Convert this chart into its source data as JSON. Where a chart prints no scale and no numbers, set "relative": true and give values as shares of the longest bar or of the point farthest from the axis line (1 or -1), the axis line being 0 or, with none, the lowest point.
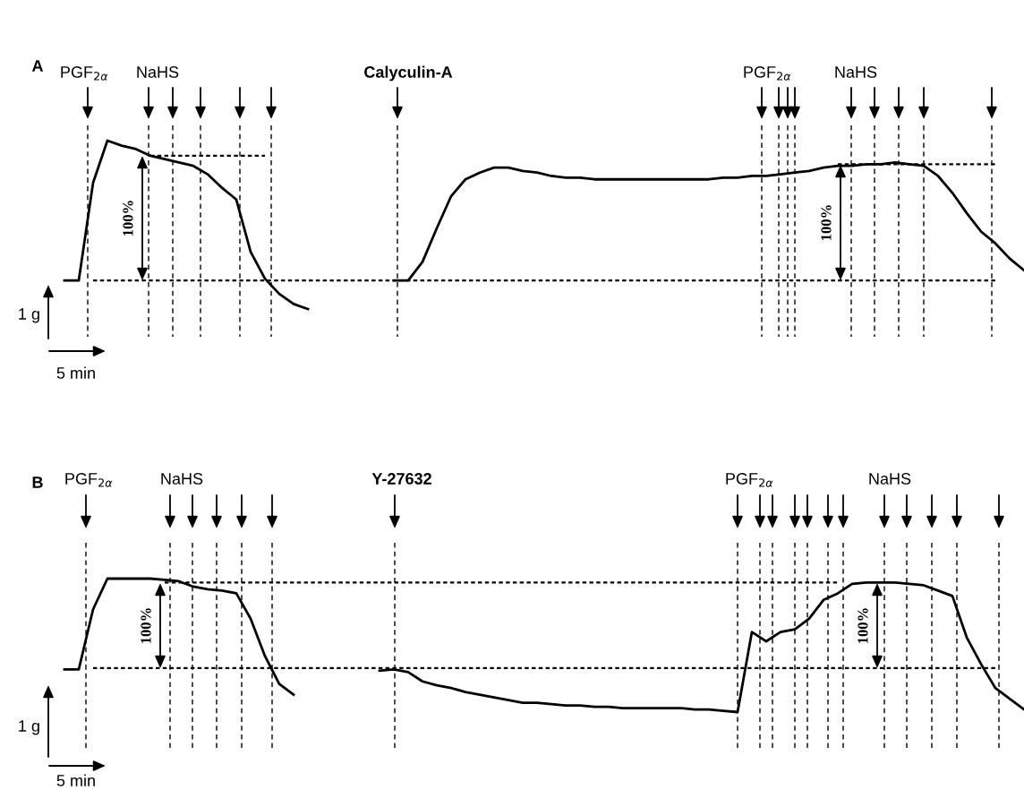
{
  "chart_data": [
    {
      "type": "line",
      "title": "A",
      "relative": true,
      "tick_labels": false,
      "categories": [
        null,
        null,
        null,
        null,
        null,
        null,
        null,
        null,
        null,
        null,
        null,
        null,
        null,
        null,
        null,
        null,
        null,
        null,
        null,
        null,
        null,
        null,
        null,
        null,
        null,
        null,
        null,
        null,
        null,
        null,
        null,
        null,
        null,
        null,
        null,
        null,
        null,
        null,
        null,
        null,
        null,
        null,
        null,
        null,
        null,
        null,
        null,
        null,
        null,
        null,
        null,
        null,
        null,
        null,
        null,
        null,
        null,
        null,
        null,
        null,
        null,
        null,
        null,
        null,
        null,
        null,
        null,
        null
      ],
      "series": [
        {
          "color": "#000000",
          "line_style": "solid",
          "values": [
            0.17,
            0.17,
            0.75,
            1.0,
            0.97,
            0.95,
            0.91,
            0.89,
            0.87,
            0.85,
            0.8,
            0.72,
            0.65,
            0.34,
            0.18,
            0.09,
            0.03,
            0,
            null,
            null,
            null,
            null,
            null,
            null,
            null,
            null,
            null,
            null,
            null,
            null,
            null,
            null,
            null,
            null,
            null,
            null,
            null,
            null,
            null,
            null,
            null,
            null,
            null,
            null,
            null,
            null,
            null,
            null,
            null,
            null,
            null,
            null,
            null,
            null,
            null,
            null,
            null,
            null,
            null,
            null,
            null,
            null,
            null,
            null,
            null,
            null,
            null,
            null
          ]
        },
        {
          "color": "#000000",
          "line_style": "solid",
          "values": [
            null,
            null,
            null,
            null,
            null,
            null,
            null,
            null,
            null,
            null,
            null,
            null,
            null,
            null,
            null,
            null,
            null,
            null,
            null,
            null,
            null,
            null,
            null,
            0.17,
            0.17,
            0.28,
            0.48,
            0.67,
            0.77,
            0.81,
            0.84,
            0.84,
            0.82,
            0.81,
            0.79,
            0.78,
            0.78,
            0.77,
            0.77,
            0.77,
            0.77,
            0.77,
            0.77,
            0.77,
            0.77,
            0.77,
            0.78,
            0.78,
            0.79,
            0.79,
            0.8,
            0.81,
            0.82,
            0.84,
            0.85,
            0.85,
            0.86,
            0.86,
            0.87,
            0.86,
            0.85,
            0.79,
            0.69,
            0.57,
            0.46,
            0.39,
            0.3,
            0.23
          ]
        },
        {
          "color": "#000000",
          "line_style": "dotted",
          "values": [
            null,
            null,
            0.17,
            0.17,
            0.17,
            0.17,
            0.17,
            0.17,
            0.17,
            0.17,
            0.17,
            0.17,
            0.17,
            0.17,
            0.17,
            0.17,
            0.17,
            0.17,
            0.17,
            0.17,
            0.17,
            0.17,
            0.17,
            0.17,
            0.17,
            0.17,
            0.17,
            0.17,
            0.17,
            0.17,
            0.17,
            0.17,
            0.17,
            0.17,
            0.17,
            0.17,
            0.17,
            0.17,
            0.17,
            0.17,
            0.17,
            0.17,
            0.17,
            0.17,
            0.17,
            0.17,
            0.17,
            0.17,
            0.17,
            0.17,
            0.17,
            0.17,
            0.17,
            0.17,
            0.17,
            0.17,
            0.17,
            0.17,
            0.17,
            0.17,
            0.17,
            0.17,
            0.17,
            0.17,
            0.17,
            0.17,
            null,
            null
          ]
        },
        {
          "color": "#000000",
          "line_style": "dotted",
          "values": [
            null,
            null,
            null,
            null,
            null,
            null,
            0.91,
            0.91,
            0.91,
            0.91,
            0.91,
            0.91,
            0.91,
            0.91,
            0.91,
            null,
            null,
            null,
            null,
            null,
            null,
            null,
            null,
            null,
            null,
            null,
            null,
            null,
            null,
            null,
            null,
            null,
            null,
            null,
            null,
            null,
            null,
            null,
            null,
            null,
            null,
            null,
            null,
            null,
            null,
            null,
            null,
            null,
            null,
            null,
            null,
            null,
            null,
            null,
            null,
            null,
            null,
            null,
            null,
            null,
            null,
            null,
            null,
            null,
            null,
            null,
            null,
            null
          ]
        },
        {
          "color": "#000000",
          "line_style": "dotted",
          "values": [
            null,
            null,
            null,
            null,
            null,
            null,
            null,
            null,
            null,
            null,
            null,
            null,
            null,
            null,
            null,
            null,
            null,
            null,
            null,
            null,
            null,
            null,
            null,
            null,
            null,
            null,
            null,
            null,
            null,
            null,
            null,
            null,
            null,
            null,
            null,
            null,
            null,
            null,
            null,
            null,
            null,
            null,
            null,
            null,
            null,
            null,
            null,
            null,
            null,
            null,
            null,
            null,
            null,
            null,
            0.86,
            0.86,
            0.86,
            0.86,
            0.86,
            0.86,
            0.86,
            0.86,
            0.86,
            0.86,
            0.86,
            0.86,
            null,
            null
          ]
        }
      ],
      "annotations": [
        "PGF$_{2α}$",
        "NaHS",
        "Calyculin-A",
        "PGF$_{2α}$",
        "NaHS",
        "100%",
        "100%",
        "1 g",
        "5 min"
      ]
    },
    {
      "type": "line",
      "title": "B",
      "relative": true,
      "tick_labels": false,
      "categories": [
        null,
        null,
        null,
        null,
        null,
        null,
        null,
        null,
        null,
        null,
        null,
        null,
        null,
        null,
        null,
        null,
        null,
        null,
        null,
        null,
        null,
        null,
        null,
        null,
        null,
        null,
        null,
        null,
        null,
        null,
        null,
        null,
        null,
        null,
        null,
        null,
        null,
        null,
        null,
        null,
        null,
        null,
        null,
        null,
        null,
        null,
        null,
        null,
        null,
        null,
        null,
        null,
        null,
        null,
        null,
        null,
        null,
        null,
        null,
        null,
        null,
        null,
        null,
        null,
        null,
        null,
        null,
        null
      ],
      "series": [
        {
          "color": "#000000",
          "line_style": "solid",
          "values": [
            0.32,
            0.32,
            0.77,
            1.0,
            1.0,
            1.0,
            1.0,
            0.99,
            0.98,
            0.94,
            0.92,
            0.91,
            0.89,
            0.7,
            0.42,
            0.21,
            0.13,
            null,
            null,
            null,
            null,
            null,
            null,
            null,
            null,
            null,
            null,
            null,
            null,
            null,
            null,
            null,
            null,
            null,
            null,
            null,
            null,
            null,
            null,
            null,
            null,
            null,
            null,
            null,
            null,
            null,
            null,
            null,
            null,
            null,
            null,
            null,
            null,
            null,
            null,
            null,
            null,
            null,
            null,
            null,
            null,
            null,
            null,
            null,
            null,
            null,
            null,
            null
          ]
        },
        {
          "color": "#000000",
          "line_style": "solid",
          "values": [
            null,
            null,
            null,
            null,
            null,
            null,
            null,
            null,
            null,
            null,
            null,
            null,
            null,
            null,
            null,
            null,
            null,
            null,
            null,
            null,
            null,
            null,
            0.31,
            0.32,
            0.3,
            0.23,
            0.2,
            0.18,
            0.15,
            0.13,
            0.11,
            0.09,
            0.07,
            0.07,
            0.06,
            0.05,
            0.05,
            0.04,
            0.04,
            0.03,
            0.03,
            0.03,
            0.03,
            0.03,
            0.02,
            0.02,
            0.01,
            0,
            0.6,
            0.53,
            0.6,
            0.62,
            0.7,
            0.84,
            0.89,
            0.96,
            0.97,
            0.97,
            0.97,
            0.96,
            0.95,
            0.91,
            0.87,
            0.56,
            0.36,
            0.18,
            0.1,
            0.02
          ]
        },
        {
          "color": "#000000",
          "line_style": "dotted",
          "values": [
            null,
            null,
            0.33,
            0.33,
            0.33,
            0.33,
            0.33,
            0.33,
            0.33,
            0.33,
            0.33,
            0.33,
            0.33,
            0.33,
            0.33,
            0.33,
            0.33,
            0.33,
            0.33,
            0.33,
            0.33,
            0.33,
            0.33,
            0.33,
            0.33,
            0.33,
            0.33,
            0.33,
            0.33,
            0.33,
            0.33,
            0.33,
            0.33,
            0.33,
            0.33,
            0.33,
            0.33,
            0.33,
            0.33,
            0.33,
            0.33,
            0.33,
            0.33,
            0.33,
            0.33,
            0.33,
            0.33,
            0.33,
            0.33,
            0.33,
            0.33,
            0.33,
            0.33,
            0.33,
            0.33,
            0.33,
            0.33,
            0.33,
            0.33,
            0.33,
            0.33,
            0.33,
            0.33,
            0.33,
            0.33,
            0.33,
            null,
            null
          ]
        },
        {
          "color": "#000000",
          "line_style": "dotted",
          "values": [
            null,
            null,
            null,
            null,
            null,
            null,
            null,
            0.97,
            0.97,
            0.97,
            0.97,
            0.97,
            0.97,
            0.97,
            0.97,
            0.97,
            0.97,
            0.97,
            0.97,
            0.97,
            0.97,
            0.97,
            0.97,
            0.97,
            0.97,
            0.97,
            0.97,
            0.97,
            0.97,
            0.97,
            0.97,
            0.97,
            0.97,
            0.97,
            0.97,
            0.97,
            0.97,
            0.97,
            0.97,
            0.97,
            0.97,
            0.97,
            0.97,
            0.97,
            0.97,
            0.97,
            0.97,
            0.97,
            0.97,
            0.97,
            0.97,
            0.97,
            0.97,
            0.97,
            0.97,
            null,
            null,
            null,
            null,
            null,
            null,
            null,
            null,
            null,
            null,
            null,
            null,
            null
          ]
        }
      ],
      "annotations": [
        "PGF$_{2α}$",
        "NaHS",
        "Y-27632",
        "PGF$_{2α}$",
        "NaHS",
        "100%",
        "100%",
        "1 g",
        "5 min"
      ]
    }
  ]
}
